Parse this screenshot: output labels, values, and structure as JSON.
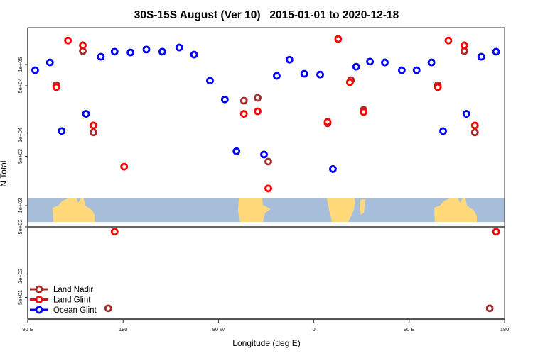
{
  "chart_data": {
    "type": "scatter",
    "title": "30S-15S August (Ver 10)   2015-01-01 to 2020-12-18",
    "xlabel": "Longitude (deg E)",
    "ylabel": "N Total",
    "xlim": [
      90,
      540
    ],
    "ylim_log10": [
      1.39,
      5.52
    ],
    "yscale": "log",
    "grid": false,
    "legend_position": "bottom-left",
    "x_ticks": [
      {
        "value": 90,
        "label": "90 E"
      },
      {
        "value": 180,
        "label": "180"
      },
      {
        "value": 270,
        "label": "90 W"
      },
      {
        "value": 360,
        "label": "0"
      },
      {
        "value": 450,
        "label": "90 E"
      },
      {
        "value": 540,
        "label": "180"
      }
    ],
    "y_ticks": [
      {
        "value": 100000,
        "label": "1e+05"
      },
      {
        "value": 50000,
        "label": "5e+04"
      },
      {
        "value": 10000,
        "label": "1e+04"
      },
      {
        "value": 5000,
        "label": "5e+03"
      },
      {
        "value": 1000,
        "label": "1e+03"
      },
      {
        "value": 500,
        "label": "5e+02"
      },
      {
        "value": 100,
        "label": "1e+02"
      },
      {
        "value": 50,
        "label": "5e+01"
      }
    ],
    "series": [
      {
        "name": "Land Nadir",
        "color": "#a52a2a",
        "points": [
          [
            117,
            51000
          ],
          [
            142,
            155000
          ],
          [
            152,
            10900
          ],
          [
            166,
            35
          ],
          [
            294,
            30700
          ],
          [
            307,
            33700
          ],
          [
            317,
            4200
          ],
          [
            373,
            14700
          ],
          [
            395,
            60000
          ],
          [
            407,
            22800
          ],
          [
            477,
            51000
          ],
          [
            502,
            155000
          ],
          [
            512,
            10900
          ],
          [
            526,
            35
          ]
        ]
      },
      {
        "name": "Land Glint",
        "color": "#ff0000",
        "points": [
          [
            117,
            47700
          ],
          [
            128,
            219000
          ],
          [
            142,
            187000
          ],
          [
            152,
            13700
          ],
          [
            172,
            427
          ],
          [
            181,
            3560
          ],
          [
            294,
            20000
          ],
          [
            307,
            21700
          ],
          [
            317,
            1750
          ],
          [
            373,
            15400
          ],
          [
            383,
            230000
          ],
          [
            394,
            56000
          ],
          [
            407,
            21200
          ],
          [
            477,
            47700
          ],
          [
            487,
            219000
          ],
          [
            502,
            187000
          ],
          [
            512,
            13700
          ],
          [
            532,
            427
          ]
        ]
      },
      {
        "name": "Ocean Glint",
        "color": "#0000ff",
        "points": [
          [
            97,
            83000
          ],
          [
            111,
            107000
          ],
          [
            122,
            11400
          ],
          [
            145,
            20000
          ],
          [
            159,
            129000
          ],
          [
            172,
            152000
          ],
          [
            187,
            148000
          ],
          [
            202,
            163000
          ],
          [
            217,
            152000
          ],
          [
            233,
            174000
          ],
          [
            247,
            138000
          ],
          [
            262,
            59000
          ],
          [
            276,
            32000
          ],
          [
            287,
            5900
          ],
          [
            313,
            5300
          ],
          [
            325,
            69000
          ],
          [
            337,
            117000
          ],
          [
            351,
            74000
          ],
          [
            366,
            72000
          ],
          [
            378,
            3300
          ],
          [
            400,
            93000
          ],
          [
            413,
            110000
          ],
          [
            427,
            107000
          ],
          [
            443,
            83000
          ],
          [
            457,
            83000
          ],
          [
            471,
            107000
          ],
          [
            482,
            11400
          ],
          [
            504,
            20000
          ],
          [
            518,
            129000
          ],
          [
            532,
            152000
          ]
        ]
      }
    ],
    "map_colors": {
      "ocean": "#a7bedb",
      "land": "#ffd97a"
    }
  }
}
